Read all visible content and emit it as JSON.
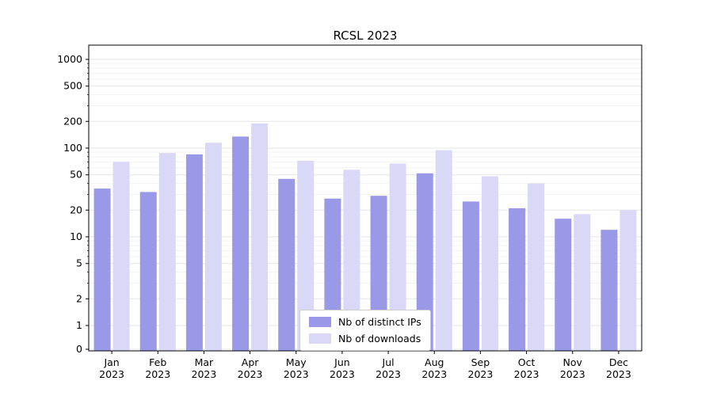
{
  "title": "RCSL 2023",
  "chart_data": {
    "type": "bar",
    "title": "RCSL 2023",
    "y_scale": "symlog",
    "ylim": [
      0,
      1000
    ],
    "y_ticks": [
      0,
      1,
      2,
      5,
      10,
      20,
      50,
      100,
      200,
      500,
      1000
    ],
    "grid": true,
    "legend_position": "lower center",
    "year_label": "2023",
    "months": [
      "Jan",
      "Feb",
      "Mar",
      "Apr",
      "May",
      "Jun",
      "Jul",
      "Aug",
      "Sep",
      "Oct",
      "Nov",
      "Dec"
    ],
    "categories": [
      "Jan 2023",
      "Feb 2023",
      "Mar 2023",
      "Apr 2023",
      "May 2023",
      "Jun 2023",
      "Jul 2023",
      "Aug 2023",
      "Sep 2023",
      "Oct 2023",
      "Nov 2023",
      "Dec 2023"
    ],
    "series": [
      {
        "name": "Nb of distinct IPs",
        "color": "#9a99e8",
        "values": [
          35,
          32,
          85,
          135,
          45,
          27,
          29,
          52,
          25,
          21,
          16,
          12
        ]
      },
      {
        "name": "Nb of downloads",
        "color": "#d9d8f7",
        "values": [
          70,
          88,
          115,
          190,
          72,
          57,
          67,
          95,
          48,
          40,
          18,
          20
        ]
      }
    ],
    "colors": {
      "distinct_ips": "#9a99e8",
      "downloads": "#d9d8f7",
      "grid_major": "#e5e5e5",
      "grid_minor": "#f2f2f2",
      "axis": "#000000"
    }
  }
}
